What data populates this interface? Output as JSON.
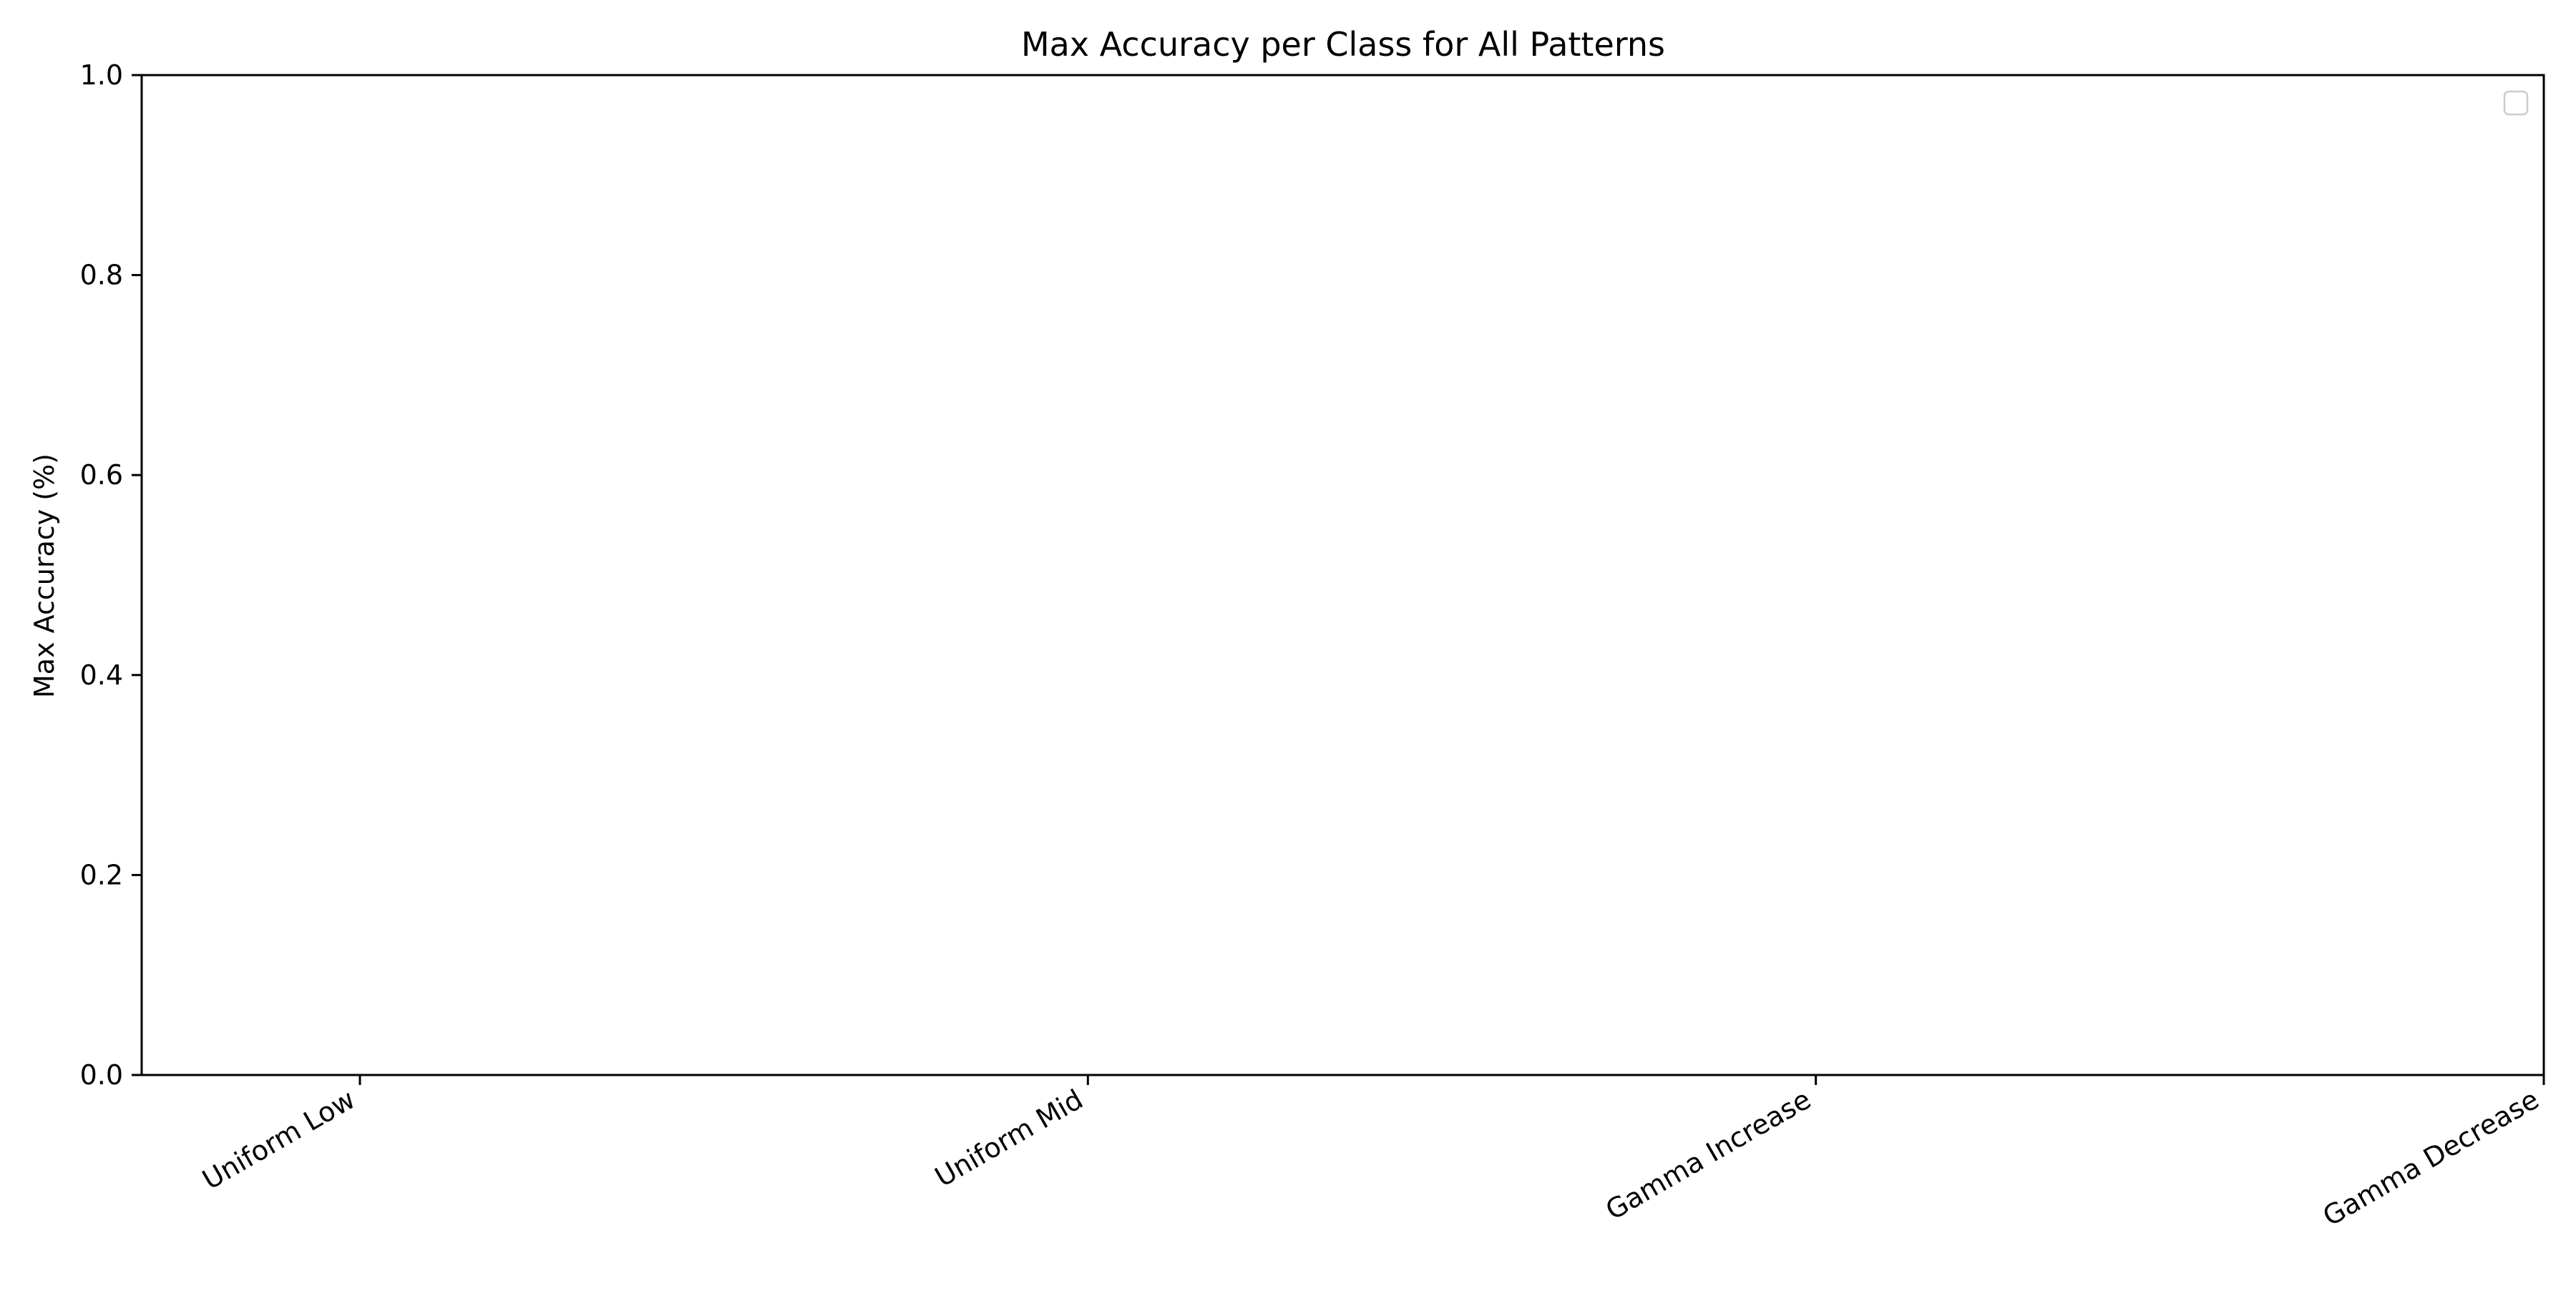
{
  "chart_data": {
    "type": "bar",
    "title": "Max Accuracy per Class for All Patterns",
    "xlabel": "",
    "ylabel": "Max Accuracy (%)",
    "categories": [
      "Uniform Low",
      "Uniform Mid",
      "Gamma Increase",
      "Gamma Decrease"
    ],
    "series": [],
    "ylim": [
      0,
      1.0
    ],
    "yticks": [
      "0.0",
      "0.2",
      "0.4",
      "0.6",
      "0.8",
      "1.0"
    ],
    "grid": false,
    "legend": {
      "placement": "top-right",
      "entries": []
    }
  }
}
